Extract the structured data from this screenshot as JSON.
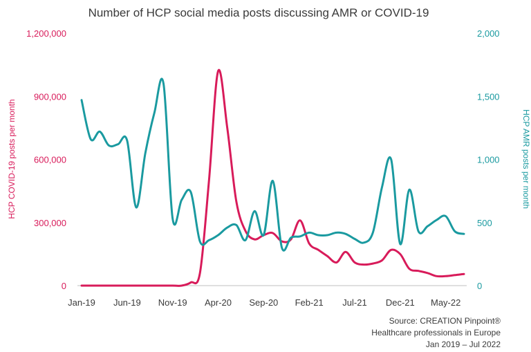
{
  "chart_data": {
    "type": "line",
    "title": "Number of HCP social media posts discussing AMR or COVID-19",
    "ylabel_left": "HCP COVID-19 posts per month",
    "ylabel_right": "HCP AMR posts per month",
    "ylim_left": [
      0,
      1200000
    ],
    "ylim_right": [
      0,
      2000
    ],
    "yticks_left": [
      "0",
      "300,000",
      "600,000",
      "900,000",
      "1,200,000"
    ],
    "yticks_right": [
      "0",
      "500",
      "1,000",
      "1,500",
      "2,000"
    ],
    "xticks": [
      "Jan-19",
      "Jun-19",
      "Nov-19",
      "Apr-20",
      "Sep-20",
      "Feb-21",
      "Jul-21",
      "Dec-21",
      "May-22"
    ],
    "x": [
      "Jan-19",
      "Feb-19",
      "Mar-19",
      "Apr-19",
      "May-19",
      "Jun-19",
      "Jul-19",
      "Aug-19",
      "Sep-19",
      "Oct-19",
      "Nov-19",
      "Dec-19",
      "Jan-20",
      "Feb-20",
      "Mar-20",
      "Apr-20",
      "May-20",
      "Jun-20",
      "Jul-20",
      "Aug-20",
      "Sep-20",
      "Oct-20",
      "Nov-20",
      "Dec-20",
      "Jan-21",
      "Feb-21",
      "Mar-21",
      "Apr-21",
      "May-21",
      "Jun-21",
      "Jul-21",
      "Aug-21",
      "Sep-21",
      "Oct-21",
      "Nov-21",
      "Dec-21",
      "Jan-22",
      "Feb-22",
      "Mar-22",
      "Apr-22",
      "May-22",
      "Jun-22",
      "Jul-22"
    ],
    "series": [
      {
        "name": "HCP COVID-19 posts per month",
        "axis": "left",
        "color": "#d81b5a",
        "values": [
          0,
          0,
          0,
          0,
          0,
          0,
          0,
          0,
          0,
          0,
          0,
          0,
          15000,
          60000,
          500000,
          1020000,
          750000,
          400000,
          260000,
          220000,
          240000,
          250000,
          210000,
          220000,
          310000,
          200000,
          170000,
          140000,
          110000,
          160000,
          110000,
          100000,
          105000,
          120000,
          170000,
          150000,
          80000,
          70000,
          60000,
          45000,
          45000,
          50000,
          55000
        ]
      },
      {
        "name": "HCP AMR posts per month",
        "axis": "right",
        "color": "#1a9aa0",
        "values": [
          1470,
          1160,
          1220,
          1110,
          1120,
          1150,
          620,
          1050,
          1370,
          1600,
          530,
          680,
          740,
          350,
          360,
          400,
          460,
          480,
          360,
          590,
          400,
          830,
          300,
          380,
          390,
          420,
          400,
          400,
          420,
          410,
          370,
          340,
          420,
          780,
          1000,
          330,
          760,
          430,
          470,
          520,
          550,
          430,
          410
        ]
      }
    ],
    "source_lines": [
      "Source: CREATION Pinpoint®",
      "Healthcare professionals in Europe",
      "Jan 2019 – Jul 2022"
    ]
  }
}
